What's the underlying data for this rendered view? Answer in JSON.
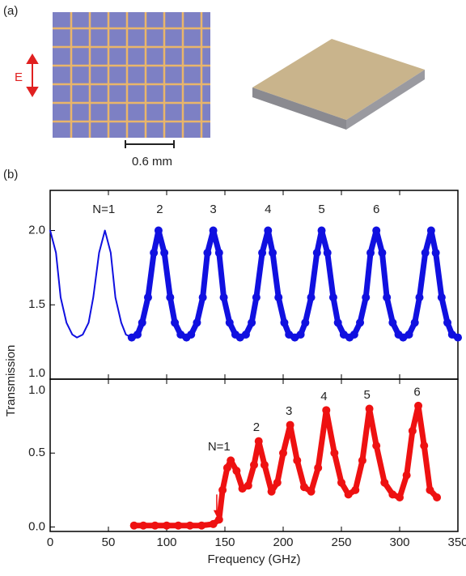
{
  "panel_a": {
    "label": "(a)",
    "field_label": "E",
    "scale_bar": "0.6 mm"
  },
  "panel_b": {
    "label": "(b)"
  },
  "chart_data": [
    {
      "type": "line",
      "ylim": [
        1.0,
        2.27
      ],
      "yticks": [
        {
          "value": 1.0,
          "label": "1.0"
        },
        {
          "value": 1.5,
          "label": "1.5"
        },
        {
          "value": 2.0,
          "label": "2.0"
        }
      ],
      "xlim": [
        0,
        350
      ],
      "xticks": [
        0,
        50,
        100,
        150,
        200,
        250,
        300,
        350
      ],
      "series": [
        {
          "color": "#1010e0",
          "style": "thin",
          "x": [
            0,
            5,
            9,
            14,
            19,
            23,
            28,
            33,
            37,
            42,
            47,
            52,
            56,
            61,
            65,
            70
          ],
          "values": [
            2.0,
            1.85,
            1.55,
            1.38,
            1.3,
            1.28,
            1.3,
            1.38,
            1.55,
            1.85,
            2.0,
            1.85,
            1.55,
            1.38,
            1.3,
            1.28
          ]
        },
        {
          "color": "#1010e0",
          "style": "markers",
          "x": [
            70,
            75,
            79,
            84,
            89,
            93,
            98,
            103,
            107,
            112,
            117,
            121,
            126,
            131,
            135,
            140,
            145,
            149,
            154,
            159,
            163,
            168,
            173,
            177,
            182,
            187,
            191,
            196,
            201,
            205,
            210,
            215,
            219,
            224,
            229,
            233,
            238,
            243,
            247,
            252,
            257,
            261,
            266,
            271,
            275,
            280,
            285,
            289,
            294,
            299,
            303,
            308,
            313,
            317,
            322,
            327,
            331,
            336,
            341,
            345,
            350
          ],
          "values": [
            1.28,
            1.3,
            1.38,
            1.55,
            1.85,
            2.0,
            1.85,
            1.55,
            1.38,
            1.3,
            1.28,
            1.3,
            1.38,
            1.55,
            1.85,
            2.0,
            1.85,
            1.55,
            1.38,
            1.3,
            1.28,
            1.3,
            1.38,
            1.55,
            1.85,
            2.0,
            1.85,
            1.55,
            1.38,
            1.3,
            1.28,
            1.3,
            1.38,
            1.55,
            1.85,
            2.0,
            1.85,
            1.55,
            1.38,
            1.3,
            1.28,
            1.3,
            1.38,
            1.55,
            1.85,
            2.0,
            1.85,
            1.55,
            1.38,
            1.3,
            1.28,
            1.3,
            1.38,
            1.55,
            1.85,
            2.0,
            1.85,
            1.55,
            1.38,
            1.3,
            1.28
          ]
        }
      ],
      "annotations": [
        {
          "text": "N=1",
          "x": 46,
          "y": 2.14
        },
        {
          "text": "2",
          "x": 94,
          "y": 2.14
        },
        {
          "text": "3",
          "x": 140,
          "y": 2.14
        },
        {
          "text": "4",
          "x": 187,
          "y": 2.14
        },
        {
          "text": "5",
          "x": 233,
          "y": 2.14
        },
        {
          "text": "6",
          "x": 280,
          "y": 2.14
        }
      ]
    },
    {
      "type": "line",
      "ylim": [
        -0.03,
        1.0
      ],
      "yticks": [
        {
          "value": 0.0,
          "label": "0.0"
        },
        {
          "value": 0.5,
          "label": "0.5"
        },
        {
          "value": 1.0,
          "label": "1.0"
        }
      ],
      "xlim": [
        0,
        350
      ],
      "xticks": [
        0,
        50,
        100,
        150,
        200,
        250,
        300,
        350
      ],
      "xlabel": "Frequency (GHz)",
      "ylabel": "Transmission",
      "series": [
        {
          "color": "#ee1111",
          "style": "markers",
          "x": [
            72,
            80,
            90,
            100,
            110,
            120,
            130,
            140,
            145,
            148,
            152,
            155,
            160,
            165,
            170,
            175,
            179,
            184,
            190,
            195,
            200,
            206,
            212,
            218,
            224,
            230,
            237,
            244,
            250,
            256,
            262,
            268,
            274,
            280,
            287,
            294,
            300,
            306,
            311,
            316,
            321,
            326,
            332
          ],
          "values": [
            0.01,
            0.01,
            0.01,
            0.01,
            0.01,
            0.01,
            0.01,
            0.02,
            0.05,
            0.25,
            0.4,
            0.45,
            0.38,
            0.26,
            0.28,
            0.42,
            0.58,
            0.42,
            0.24,
            0.3,
            0.5,
            0.69,
            0.45,
            0.27,
            0.24,
            0.4,
            0.79,
            0.5,
            0.3,
            0.22,
            0.25,
            0.45,
            0.8,
            0.55,
            0.3,
            0.22,
            0.2,
            0.35,
            0.65,
            0.82,
            0.55,
            0.25,
            0.2
          ]
        }
      ],
      "arrow": {
        "x": 143,
        "y_top": 0.22,
        "y_bottom": 0.07,
        "color": "#ee1111"
      },
      "annotations": [
        {
          "text": "N=1",
          "x": 145,
          "y": 0.54
        },
        {
          "text": "2",
          "x": 177,
          "y": 0.67
        },
        {
          "text": "3",
          "x": 205,
          "y": 0.78
        },
        {
          "text": "4",
          "x": 235,
          "y": 0.88
        },
        {
          "text": "5",
          "x": 272,
          "y": 0.89
        },
        {
          "text": "6",
          "x": 315,
          "y": 0.91
        }
      ]
    }
  ]
}
